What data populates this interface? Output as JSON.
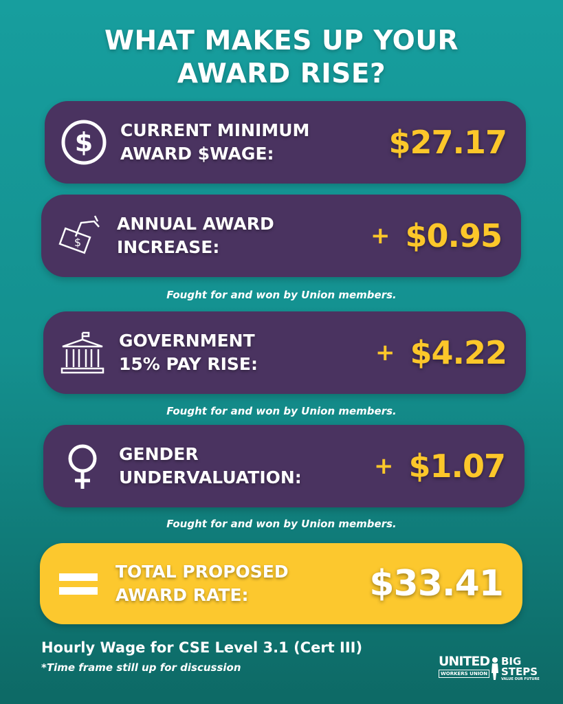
{
  "title": {
    "line1": "WHAT MAKES UP YOUR",
    "line2": "AWARD RISE?"
  },
  "colors": {
    "purple": "#4a3360",
    "yellow": "#fcc72a",
    "teal": "#179e9e"
  },
  "cards": [
    {
      "icon": "dollar-coin-icon",
      "label1": "CURRENT MINIMUM",
      "label2": "AWARD $WAGE:",
      "plus": "",
      "amount": "$27.17"
    },
    {
      "icon": "hand-money-icon",
      "label1": "ANNUAL AWARD",
      "label2": "INCREASE:",
      "plus": "+",
      "amount": "$0.95"
    },
    {
      "icon": "government-building-icon",
      "label1": "GOVERNMENT",
      "label2": "15% PAY RISE:",
      "plus": "+",
      "amount": "$4.22"
    },
    {
      "icon": "female-symbol-icon",
      "label1": "GENDER",
      "label2": "UNDERVALUATION:",
      "plus": "+",
      "amount": "$1.07"
    }
  ],
  "captions": [
    "Fought for and won by Union members.",
    "Fought for and won by Union members.",
    "Fought for and won by Union members."
  ],
  "total": {
    "icon": "equals-icon",
    "label1": "TOTAL PROPOSED",
    "label2": "AWARD RATE:",
    "amount": "$33.41"
  },
  "footer": {
    "line1": "Hourly Wage for CSE Level 3.1 (Cert III)",
    "line2": "*Time frame still up for discussion"
  },
  "logos": {
    "uwu_top": "UNITED",
    "uwu_bottom": "WORKERS UNION",
    "bigsteps_top": "BIG",
    "bigsteps_mid": "STEPS",
    "bigsteps_tag": "VALUE OUR FUTURE"
  }
}
